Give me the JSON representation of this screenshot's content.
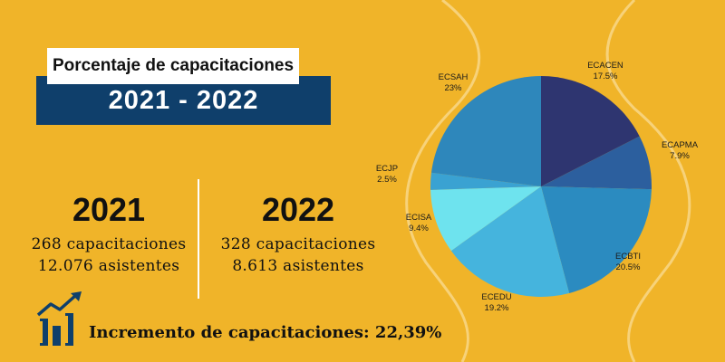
{
  "header": {
    "title": "Porcentaje de capacitaciones",
    "years": "2021 - 2022"
  },
  "stats": {
    "y2021": {
      "year": "2021",
      "capacitaciones": "268 capacitaciones",
      "asistentes": "12.076 asistentes"
    },
    "y2022": {
      "year": "2022",
      "capacitaciones": "328 capacitaciones",
      "asistentes": "8.613 asistentes"
    }
  },
  "increment": {
    "label": "Incremento de capacitaciones: 22,39%",
    "icon": "growth-chart-icon"
  },
  "colors": {
    "background": "#f0b429",
    "banner": "#0f3f6b"
  },
  "chart_data": {
    "type": "pie",
    "title": "",
    "slices": [
      {
        "label": "ECACEN",
        "value": 17.5,
        "display": "17.5%",
        "color": "#2e3570"
      },
      {
        "label": "ECAPMA",
        "value": 7.9,
        "display": "7.9%",
        "color": "#2c5f9e"
      },
      {
        "label": "ECBTI",
        "value": 20.5,
        "display": "20.5%",
        "color": "#2b8bc0"
      },
      {
        "label": "ECEDU",
        "value": 19.2,
        "display": "19.2%",
        "color": "#45b4dd"
      },
      {
        "label": "ECISA",
        "value": 9.4,
        "display": "9.4%",
        "color": "#6ee3ee"
      },
      {
        "label": "ECJP",
        "value": 2.5,
        "display": "2.5%",
        "color": "#3aa2d2"
      },
      {
        "label": "ECSAH",
        "value": 23,
        "display": "23%",
        "color": "#2e87bb"
      }
    ]
  }
}
